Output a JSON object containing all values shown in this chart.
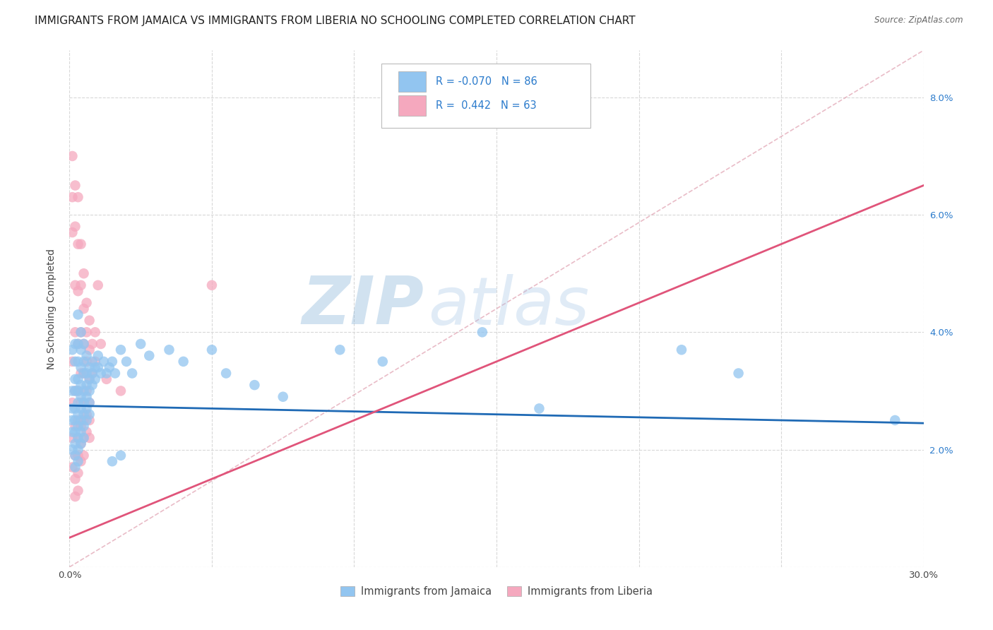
{
  "title": "IMMIGRANTS FROM JAMAICA VS IMMIGRANTS FROM LIBERIA NO SCHOOLING COMPLETED CORRELATION CHART",
  "source": "Source: ZipAtlas.com",
  "ylabel": "No Schooling Completed",
  "xlim": [
    0.0,
    0.3
  ],
  "ylim": [
    0.0,
    0.088
  ],
  "xticks": [
    0.0,
    0.05,
    0.1,
    0.15,
    0.2,
    0.25,
    0.3
  ],
  "yticks": [
    0.0,
    0.02,
    0.04,
    0.06,
    0.08
  ],
  "ytick_labels": [
    "",
    "2.0%",
    "4.0%",
    "6.0%",
    "8.0%"
  ],
  "jamaica_color": "#92C5F0",
  "liberia_color": "#F5A8BE",
  "trend_line_jamaica": {
    "x0": 0.0,
    "y0": 0.0275,
    "x1": 0.3,
    "y1": 0.0245
  },
  "trend_line_liberia": {
    "x0": 0.0,
    "y0": 0.005,
    "x1": 0.3,
    "y1": 0.065
  },
  "diagonal_line": {
    "x0": 0.0,
    "y0": 0.0,
    "x1": 0.3,
    "y1": 0.088
  },
  "jamaica_points": [
    [
      0.001,
      0.037
    ],
    [
      0.001,
      0.03
    ],
    [
      0.001,
      0.027
    ],
    [
      0.001,
      0.025
    ],
    [
      0.001,
      0.023
    ],
    [
      0.001,
      0.02
    ],
    [
      0.002,
      0.038
    ],
    [
      0.002,
      0.035
    ],
    [
      0.002,
      0.032
    ],
    [
      0.002,
      0.03
    ],
    [
      0.002,
      0.027
    ],
    [
      0.002,
      0.025
    ],
    [
      0.002,
      0.023
    ],
    [
      0.002,
      0.021
    ],
    [
      0.002,
      0.019
    ],
    [
      0.002,
      0.017
    ],
    [
      0.003,
      0.043
    ],
    [
      0.003,
      0.038
    ],
    [
      0.003,
      0.035
    ],
    [
      0.003,
      0.032
    ],
    [
      0.003,
      0.03
    ],
    [
      0.003,
      0.028
    ],
    [
      0.003,
      0.026
    ],
    [
      0.003,
      0.024
    ],
    [
      0.003,
      0.022
    ],
    [
      0.003,
      0.02
    ],
    [
      0.003,
      0.018
    ],
    [
      0.004,
      0.04
    ],
    [
      0.004,
      0.037
    ],
    [
      0.004,
      0.034
    ],
    [
      0.004,
      0.031
    ],
    [
      0.004,
      0.029
    ],
    [
      0.004,
      0.027
    ],
    [
      0.004,
      0.025
    ],
    [
      0.004,
      0.023
    ],
    [
      0.004,
      0.021
    ],
    [
      0.005,
      0.038
    ],
    [
      0.005,
      0.035
    ],
    [
      0.005,
      0.033
    ],
    [
      0.005,
      0.03
    ],
    [
      0.005,
      0.028
    ],
    [
      0.005,
      0.026
    ],
    [
      0.005,
      0.024
    ],
    [
      0.005,
      0.022
    ],
    [
      0.006,
      0.036
    ],
    [
      0.006,
      0.033
    ],
    [
      0.006,
      0.031
    ],
    [
      0.006,
      0.029
    ],
    [
      0.006,
      0.027
    ],
    [
      0.006,
      0.025
    ],
    [
      0.007,
      0.034
    ],
    [
      0.007,
      0.032
    ],
    [
      0.007,
      0.03
    ],
    [
      0.007,
      0.028
    ],
    [
      0.007,
      0.026
    ],
    [
      0.008,
      0.035
    ],
    [
      0.008,
      0.033
    ],
    [
      0.008,
      0.031
    ],
    [
      0.009,
      0.034
    ],
    [
      0.009,
      0.032
    ],
    [
      0.01,
      0.036
    ],
    [
      0.01,
      0.034
    ],
    [
      0.011,
      0.033
    ],
    [
      0.012,
      0.035
    ],
    [
      0.013,
      0.033
    ],
    [
      0.014,
      0.034
    ],
    [
      0.015,
      0.035
    ],
    [
      0.016,
      0.033
    ],
    [
      0.018,
      0.037
    ],
    [
      0.02,
      0.035
    ],
    [
      0.022,
      0.033
    ],
    [
      0.025,
      0.038
    ],
    [
      0.028,
      0.036
    ],
    [
      0.035,
      0.037
    ],
    [
      0.04,
      0.035
    ],
    [
      0.05,
      0.037
    ],
    [
      0.055,
      0.033
    ],
    [
      0.065,
      0.031
    ],
    [
      0.075,
      0.029
    ],
    [
      0.095,
      0.037
    ],
    [
      0.11,
      0.035
    ],
    [
      0.145,
      0.04
    ],
    [
      0.165,
      0.027
    ],
    [
      0.215,
      0.037
    ],
    [
      0.235,
      0.033
    ],
    [
      0.29,
      0.025
    ],
    [
      0.015,
      0.018
    ],
    [
      0.018,
      0.019
    ]
  ],
  "liberia_points": [
    [
      0.001,
      0.07
    ],
    [
      0.001,
      0.063
    ],
    [
      0.001,
      0.057
    ],
    [
      0.001,
      0.035
    ],
    [
      0.001,
      0.028
    ],
    [
      0.001,
      0.022
    ],
    [
      0.001,
      0.017
    ],
    [
      0.002,
      0.065
    ],
    [
      0.002,
      0.058
    ],
    [
      0.002,
      0.048
    ],
    [
      0.002,
      0.04
    ],
    [
      0.002,
      0.03
    ],
    [
      0.002,
      0.024
    ],
    [
      0.002,
      0.019
    ],
    [
      0.002,
      0.015
    ],
    [
      0.002,
      0.012
    ],
    [
      0.003,
      0.063
    ],
    [
      0.003,
      0.055
    ],
    [
      0.003,
      0.047
    ],
    [
      0.003,
      0.038
    ],
    [
      0.003,
      0.03
    ],
    [
      0.003,
      0.025
    ],
    [
      0.003,
      0.022
    ],
    [
      0.003,
      0.019
    ],
    [
      0.003,
      0.016
    ],
    [
      0.003,
      0.013
    ],
    [
      0.004,
      0.055
    ],
    [
      0.004,
      0.048
    ],
    [
      0.004,
      0.04
    ],
    [
      0.004,
      0.033
    ],
    [
      0.004,
      0.028
    ],
    [
      0.004,
      0.024
    ],
    [
      0.004,
      0.021
    ],
    [
      0.004,
      0.018
    ],
    [
      0.005,
      0.05
    ],
    [
      0.005,
      0.044
    ],
    [
      0.005,
      0.038
    ],
    [
      0.005,
      0.033
    ],
    [
      0.005,
      0.028
    ],
    [
      0.005,
      0.025
    ],
    [
      0.005,
      0.022
    ],
    [
      0.005,
      0.019
    ],
    [
      0.006,
      0.045
    ],
    [
      0.006,
      0.04
    ],
    [
      0.006,
      0.035
    ],
    [
      0.006,
      0.03
    ],
    [
      0.006,
      0.026
    ],
    [
      0.006,
      0.023
    ],
    [
      0.007,
      0.042
    ],
    [
      0.007,
      0.037
    ],
    [
      0.007,
      0.032
    ],
    [
      0.007,
      0.028
    ],
    [
      0.007,
      0.025
    ],
    [
      0.007,
      0.022
    ],
    [
      0.008,
      0.038
    ],
    [
      0.008,
      0.033
    ],
    [
      0.009,
      0.04
    ],
    [
      0.009,
      0.035
    ],
    [
      0.01,
      0.048
    ],
    [
      0.011,
      0.038
    ],
    [
      0.013,
      0.032
    ],
    [
      0.018,
      0.03
    ],
    [
      0.05,
      0.048
    ]
  ],
  "background_color": "#ffffff",
  "grid_color": "#d8d8d8",
  "watermark_zip": "ZIP",
  "watermark_atlas": "atlas",
  "title_fontsize": 11,
  "axis_label_fontsize": 10,
  "tick_fontsize": 9.5
}
